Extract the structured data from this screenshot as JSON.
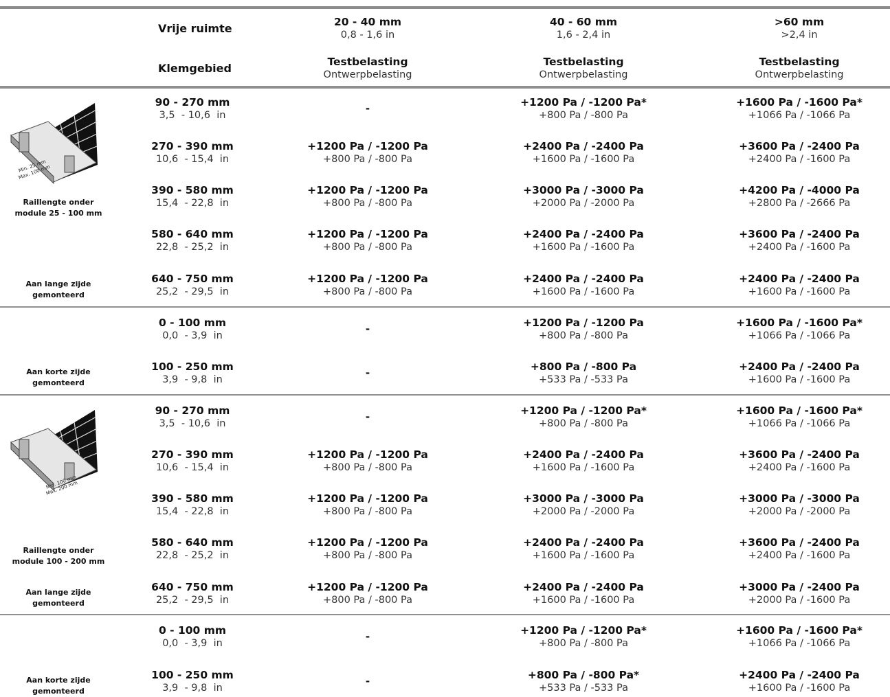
{
  "header": {
    "vrije_ruimte_label": "Vrije ruimte",
    "klemgebied_label": "Klemgebied",
    "columns": [
      {
        "range_mm": "20 - 40 mm",
        "range_in": "0,8 - 1,6 in",
        "test": "Testbelasting",
        "design": "Ontwerpbelasting"
      },
      {
        "range_mm": "40 - 60 mm",
        "range_in": "1,6 - 2,4 in",
        "test": "Testbelasting",
        "design": "Ontwerpbelasting"
      },
      {
        "range_mm": ">60 mm",
        "range_in": ">2,4 in",
        "test": "Testbelasting",
        "design": "Ontwerpbelasting"
      }
    ]
  },
  "sections": [
    {
      "side_top": "Raillengte onder module 25 - 100 mm",
      "side_bottom": "Aan lange zijde gemonteerd",
      "illustration": {
        "name": "module-rail-illustration-25-100",
        "min": "Min. 25 mm",
        "max": "Max. 100 mm"
      },
      "rows": [
        {
          "mm": "90 - 270 mm",
          "in": "3,5  - 10,6  in",
          "c1": {
            "dash": "-"
          },
          "c2": {
            "t": "+1200 Pa / -1200 Pa*",
            "d": "+800 Pa / -800 Pa"
          },
          "c3": {
            "t": "+1600 Pa / -1600 Pa*",
            "d": "+1066 Pa / -1066 Pa"
          }
        },
        {
          "mm": "270 - 390 mm",
          "in": "10,6  - 15,4  in",
          "c1": {
            "t": "+1200 Pa / -1200 Pa",
            "d": "+800 Pa / -800 Pa"
          },
          "c2": {
            "t": "+2400 Pa / -2400 Pa",
            "d": "+1600 Pa / -1600 Pa"
          },
          "c3": {
            "t": "+3600 Pa / -2400 Pa",
            "d": "+2400 Pa / -1600 Pa"
          }
        },
        {
          "mm": "390 - 580 mm",
          "in": "15,4  - 22,8  in",
          "c1": {
            "t": "+1200 Pa / -1200 Pa",
            "d": "+800 Pa / -800 Pa"
          },
          "c2": {
            "t": "+3000 Pa / -3000 Pa",
            "d": "+2000 Pa / -2000 Pa"
          },
          "c3": {
            "t": "+4200 Pa / -4000 Pa",
            "d": "+2800 Pa / -2666 Pa"
          }
        },
        {
          "mm": "580 - 640 mm",
          "in": "22,8  - 25,2  in",
          "c1": {
            "t": "+1200 Pa / -1200 Pa",
            "d": "+800 Pa / -800 Pa"
          },
          "c2": {
            "t": "+2400 Pa / -2400 Pa",
            "d": "+1600 Pa / -1600 Pa"
          },
          "c3": {
            "t": "+3600 Pa / -2400 Pa",
            "d": "+2400 Pa / -1600 Pa"
          }
        },
        {
          "mm": "640 - 750 mm",
          "in": "25,2  - 29,5  in",
          "c1": {
            "t": "+1200 Pa / -1200 Pa",
            "d": "+800 Pa / -800 Pa"
          },
          "c2": {
            "t": "+2400 Pa / -2400 Pa",
            "d": "+1600 Pa / -1600 Pa"
          },
          "c3": {
            "t": "+2400 Pa / -2400 Pa",
            "d": "+1600 Pa / -1600 Pa"
          }
        }
      ]
    },
    {
      "side_bottom": "Aan korte zijde gemonteerd",
      "rows": [
        {
          "mm": "0 - 100 mm",
          "in": "0,0  - 3,9  in",
          "c1": {
            "dash": "-"
          },
          "c2": {
            "t": "+1200 Pa / -1200 Pa",
            "d": "+800 Pa / -800 Pa"
          },
          "c3": {
            "t": "+1600 Pa / -1600 Pa*",
            "d": "+1066 Pa / -1066 Pa"
          }
        },
        {
          "mm": "100 - 250 mm",
          "in": "3,9  - 9,8  in",
          "c1": {
            "dash": "-"
          },
          "c2": {
            "t": "+800 Pa / -800 Pa",
            "d": "+533 Pa / -533 Pa"
          },
          "c3": {
            "t": "+2400 Pa / -2400 Pa",
            "d": "+1600 Pa / -1600 Pa"
          }
        }
      ]
    },
    {
      "side_top": "Raillengte onder module 100 - 200 mm",
      "side_bottom": "Aan lange zijde gemonteerd",
      "illustration": {
        "name": "module-rail-illustration-100-200",
        "min": "Min. 100 mm",
        "max": "Max. 200 mm"
      },
      "rows": [
        {
          "mm": "90 - 270 mm",
          "in": "3,5  - 10,6  in",
          "c1": {
            "dash": "-"
          },
          "c2": {
            "t": "+1200 Pa / -1200 Pa*",
            "d": "+800 Pa / -800 Pa"
          },
          "c3": {
            "t": "+1600 Pa / -1600 Pa*",
            "d": "+1066 Pa / -1066 Pa"
          }
        },
        {
          "mm": "270 - 390 mm",
          "in": "10,6  - 15,4  in",
          "c1": {
            "t": "+1200 Pa / -1200 Pa",
            "d": "+800 Pa / -800 Pa"
          },
          "c2": {
            "t": "+2400 Pa / -2400 Pa",
            "d": "+1600 Pa / -1600 Pa"
          },
          "c3": {
            "t": "+3600 Pa / -2400 Pa",
            "d": "+2400 Pa / -1600 Pa"
          }
        },
        {
          "mm": "390 - 580 mm",
          "in": "15,4  - 22,8  in",
          "c1": {
            "t": "+1200 Pa / -1200 Pa",
            "d": "+800 Pa / -800 Pa"
          },
          "c2": {
            "t": "+3000 Pa / -3000 Pa",
            "d": "+2000 Pa / -2000 Pa"
          },
          "c3": {
            "t": "+3000 Pa / -3000 Pa",
            "d": "+2000 Pa / -2000 Pa"
          }
        },
        {
          "mm": "580 - 640 mm",
          "in": "22,8  - 25,2  in",
          "c1": {
            "t": "+1200 Pa / -1200 Pa",
            "d": "+800 Pa / -800 Pa"
          },
          "c2": {
            "t": "+2400 Pa / -2400 Pa",
            "d": "+1600 Pa / -1600 Pa"
          },
          "c3": {
            "t": "+3600 Pa / -2400 Pa",
            "d": "+2400 Pa / -1600 Pa"
          }
        },
        {
          "mm": "640 - 750 mm",
          "in": "25,2  - 29,5  in",
          "c1": {
            "t": "+1200 Pa / -1200 Pa",
            "d": "+800 Pa / -800 Pa"
          },
          "c2": {
            "t": "+2400 Pa / -2400 Pa",
            "d": "+1600 Pa / -1600 Pa"
          },
          "c3": {
            "t": "+3000 Pa / -2400 Pa",
            "d": "+2000 Pa / -1600 Pa"
          }
        }
      ]
    },
    {
      "side_bottom": "Aan korte zijde gemonteerd",
      "rows": [
        {
          "mm": "0 - 100 mm",
          "in": "0,0  - 3,9  in",
          "c1": {
            "dash": "-"
          },
          "c2": {
            "t": "+1200 Pa / -1200 Pa*",
            "d": "+800 Pa / -800 Pa"
          },
          "c3": {
            "t": "+1600 Pa / -1600 Pa*",
            "d": "+1066 Pa / -1066 Pa"
          }
        },
        {
          "mm": "100 - 250 mm",
          "in": "3,9  - 9,8  in",
          "c1": {
            "dash": "-"
          },
          "c2": {
            "t": "+800 Pa / -800 Pa*",
            "d": "+533 Pa / -533 Pa"
          },
          "c3": {
            "t": "+2400 Pa / -2400 Pa",
            "d": "+1600 Pa / -1600 Pa"
          }
        }
      ]
    }
  ]
}
